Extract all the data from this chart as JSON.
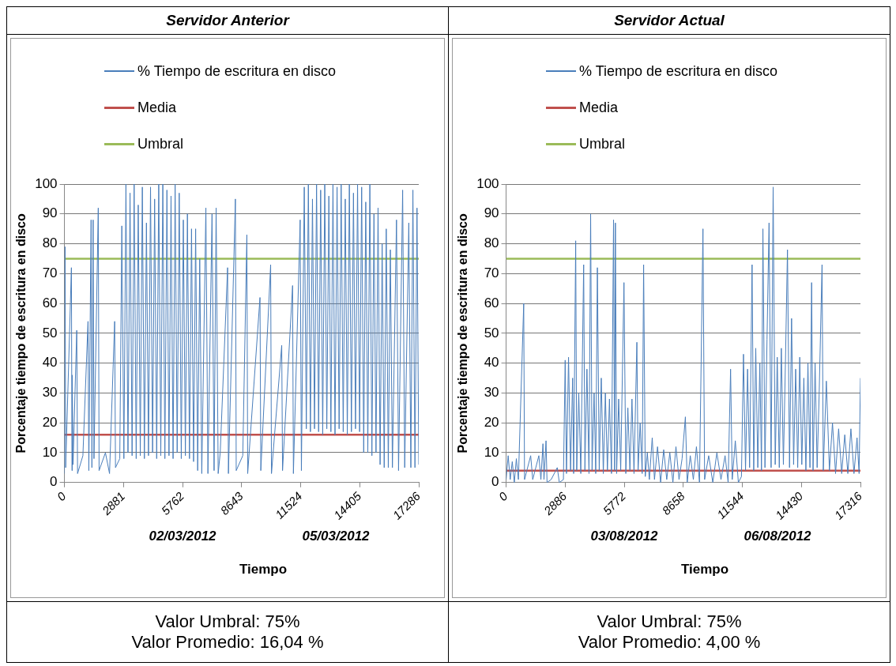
{
  "chart_data": [
    {
      "type": "line",
      "title": "Servidor Anterior",
      "xlabel": "Tiempo",
      "ylabel": "Porcentaje tiempo de escritura en disco",
      "xlim": [
        0,
        17286
      ],
      "xticks": [
        0,
        2881,
        5762,
        8643,
        11524,
        14405,
        17286
      ],
      "ylim": [
        0,
        100
      ],
      "yticks": [
        0,
        10,
        20,
        30,
        40,
        50,
        60,
        70,
        80,
        90,
        100
      ],
      "grid": "y",
      "legend": "top",
      "annotations": [
        "02/03/2012",
        "05/03/2012",
        "Valor Umbral: 75%",
        "Valor Promedio: 16,04 %"
      ],
      "series": [
        {
          "name": "% Tiempo de escritura en disco",
          "color": "#4a7ebb",
          "x": [
            0,
            30,
            60,
            340,
            370,
            380,
            420,
            600,
            640,
            900,
            1150,
            1190,
            1300,
            1340,
            1400,
            1440,
            1650,
            1690,
            2000,
            2200,
            2450,
            2490,
            2700,
            2800,
            2900,
            3000,
            3100,
            3200,
            3300,
            3400,
            3500,
            3600,
            3700,
            3800,
            3900,
            4000,
            4100,
            4200,
            4300,
            4400,
            4500,
            4600,
            4700,
            4800,
            4900,
            5000,
            5100,
            5200,
            5300,
            5400,
            5500,
            5600,
            5700,
            5800,
            5900,
            6000,
            6100,
            6200,
            6300,
            6400,
            6500,
            6600,
            6700,
            6900,
            7000,
            7200,
            7300,
            7400,
            7500,
            7600,
            7960,
            8000,
            8340,
            8380,
            8700,
            8900,
            8940,
            9540,
            9580,
            10060,
            10100,
            10600,
            10640,
            11130,
            11170,
            11500,
            11560,
            11700,
            11800,
            11900,
            12000,
            12100,
            12200,
            12300,
            12400,
            12500,
            12600,
            12700,
            12800,
            12900,
            13000,
            13100,
            13200,
            13300,
            13400,
            13500,
            13600,
            13700,
            13800,
            13900,
            14000,
            14100,
            14200,
            14300,
            14400,
            14500,
            14600,
            14700,
            14800,
            14900,
            15000,
            15100,
            15200,
            15300,
            15400,
            15500,
            15600,
            15700,
            15800,
            15900,
            16000,
            16200,
            16300,
            16500,
            16600,
            16800,
            16900,
            17000,
            17100,
            17200,
            17286
          ],
          "values": [
            3,
            79,
            5,
            72,
            4,
            36,
            6,
            51,
            3,
            9,
            54,
            4,
            88,
            5,
            88,
            8,
            92,
            4,
            10,
            3,
            54,
            5,
            8,
            86,
            8,
            100,
            10,
            97,
            9,
            100,
            8,
            93,
            9,
            99,
            8,
            87,
            9,
            99,
            10,
            95,
            8,
            100,
            9,
            100,
            8,
            98,
            9,
            96,
            8,
            100,
            10,
            97,
            8,
            88,
            9,
            90,
            8,
            85,
            7,
            85,
            4,
            75,
            3,
            92,
            3,
            90,
            4,
            92,
            3,
            10,
            72,
            3,
            95,
            4,
            9,
            83,
            3,
            62,
            4,
            73,
            3,
            46,
            4,
            66,
            3,
            88,
            4,
            99,
            18,
            100,
            17,
            95,
            18,
            100,
            17,
            98,
            16,
            100,
            18,
            96,
            17,
            100,
            16,
            99,
            18,
            100,
            17,
            95,
            16,
            100,
            17,
            97,
            18,
            100,
            17,
            99,
            10,
            94,
            10,
            100,
            9,
            90,
            10,
            92,
            6,
            80,
            5,
            85,
            5,
            78,
            5,
            88,
            4,
            98,
            5,
            87,
            5,
            98,
            5,
            92,
            6
          ]
        },
        {
          "name": "Media",
          "color": "#c0504d",
          "x": [
            0,
            17286
          ],
          "values": [
            16,
            16
          ]
        },
        {
          "name": "Umbral",
          "color": "#9bbb59",
          "x": [
            0,
            17286
          ],
          "values": [
            75,
            75
          ]
        }
      ]
    },
    {
      "type": "line",
      "title": "Servidor Actual",
      "xlabel": "Tiempo",
      "ylabel": "Porcentaje tiempo de escritura en disco",
      "xlim": [
        0,
        17316
      ],
      "xticks": [
        0,
        2886,
        5772,
        8658,
        11544,
        14430,
        17316
      ],
      "ylim": [
        0,
        100
      ],
      "yticks": [
        0,
        10,
        20,
        30,
        40,
        50,
        60,
        70,
        80,
        90,
        100
      ],
      "grid": "y",
      "legend": "top",
      "annotations": [
        "03/08/2012",
        "06/08/2012",
        "Valor Umbral: 75%",
        "Valor Promedio: 4,00 %"
      ],
      "series": [
        {
          "name": "% Tiempo de escritura en disco",
          "color": "#4a7ebb",
          "x": [
            0,
            100,
            200,
            300,
            400,
            500,
            600,
            860,
            900,
            1200,
            1300,
            1600,
            1700,
            1800,
            1850,
            1950,
            2000,
            2200,
            2500,
            2600,
            2800,
            2886,
            2950,
            3050,
            3150,
            3250,
            3300,
            3400,
            3450,
            3550,
            3650,
            3790,
            3850,
            3950,
            4050,
            4130,
            4200,
            4300,
            4380,
            4460,
            4550,
            4650,
            4750,
            4850,
            4950,
            5050,
            5150,
            5250,
            5300,
            5340,
            5400,
            5500,
            5600,
            5760,
            5850,
            5950,
            6050,
            6150,
            6250,
            6390,
            6450,
            6550,
            6650,
            6720,
            6800,
            6900,
            7000,
            7140,
            7250,
            7400,
            7550,
            7700,
            7850,
            8000,
            8150,
            8300,
            8450,
            8600,
            8760,
            8850,
            9000,
            9150,
            9300,
            9450,
            9620,
            9700,
            9900,
            10100,
            10300,
            10500,
            10700,
            10850,
            10970,
            11050,
            11200,
            11350,
            11500,
            11600,
            11700,
            11800,
            11900,
            12020,
            12100,
            12200,
            12300,
            12400,
            12480,
            12550,
            12650,
            12750,
            12850,
            12950,
            13050,
            13150,
            13250,
            13350,
            13450,
            13550,
            13650,
            13750,
            13850,
            13950,
            14050,
            14150,
            14250,
            14350,
            14450,
            14550,
            14650,
            14750,
            14850,
            14930,
            15000,
            15100,
            15200,
            15300,
            15440,
            15500,
            15650,
            15800,
            15950,
            16100,
            16250,
            16400,
            16550,
            16700,
            16850,
            17000,
            17150,
            17250,
            17316
          ],
          "values": [
            1,
            9,
            1,
            7,
            0,
            8,
            1,
            60,
            1,
            9,
            1,
            9,
            1,
            13,
            1,
            14,
            0,
            1,
            5,
            0,
            1,
            41,
            3,
            42,
            4,
            35,
            3,
            81,
            4,
            30,
            3,
            73,
            4,
            38,
            3,
            90,
            4,
            30,
            3,
            72,
            4,
            35,
            3,
            30,
            4,
            28,
            3,
            88,
            4,
            87,
            3,
            28,
            4,
            67,
            3,
            25,
            4,
            28,
            3,
            47,
            4,
            20,
            3,
            73,
            2,
            10,
            1,
            15,
            1,
            12,
            0,
            11,
            1,
            10,
            0,
            12,
            1,
            8,
            22,
            0,
            9,
            1,
            12,
            0,
            85,
            1,
            9,
            0,
            10,
            1,
            9,
            0,
            38,
            1,
            14,
            0,
            2,
            43,
            4,
            38,
            5,
            73,
            4,
            45,
            5,
            40,
            4,
            85,
            5,
            48,
            87,
            5,
            99,
            6,
            42,
            5,
            45,
            6,
            40,
            78,
            5,
            55,
            6,
            38,
            5,
            42,
            6,
            35,
            4,
            40,
            5,
            67,
            4,
            40,
            5,
            30,
            73,
            4,
            34,
            4,
            20,
            3,
            18,
            3,
            16,
            3,
            18,
            3,
            15,
            3,
            35
          ]
        },
        {
          "name": "Media",
          "color": "#c0504d",
          "x": [
            0,
            17316
          ],
          "values": [
            4,
            4
          ]
        },
        {
          "name": "Umbral",
          "color": "#9bbb59",
          "x": [
            0,
            17316
          ],
          "values": [
            75,
            75
          ]
        }
      ]
    }
  ]
}
